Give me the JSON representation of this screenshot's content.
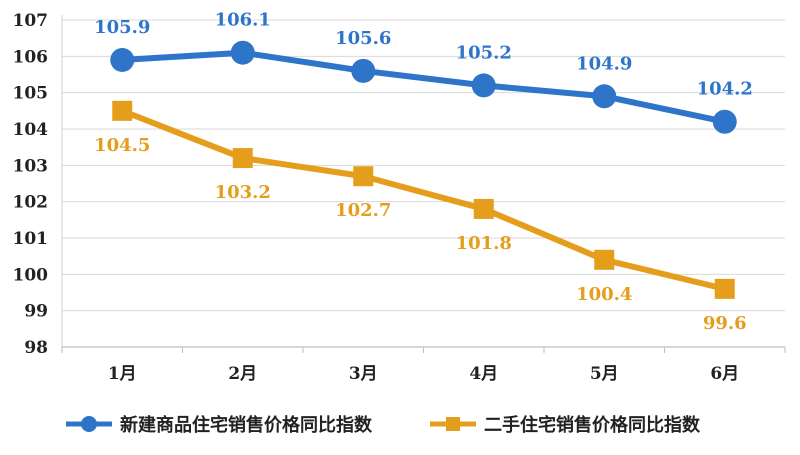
{
  "chart_data": {
    "type": "line",
    "categories": [
      "1月",
      "2月",
      "3月",
      "4月",
      "5月",
      "6月"
    ],
    "y_ticks": [
      98,
      99,
      100,
      101,
      102,
      103,
      104,
      105,
      106,
      107
    ],
    "ylim": [
      98,
      107
    ],
    "grid": true,
    "legend_position": "bottom",
    "series": [
      {
        "name": "新建商品住宅销售价格同比指数",
        "values": [
          105.9,
          106.1,
          105.6,
          105.2,
          104.9,
          104.2
        ],
        "labels": [
          "105.9",
          "106.1",
          "105.6",
          "105.2",
          "104.9",
          "104.2"
        ],
        "color": "#2E75C9",
        "marker": "circle",
        "label_position": "above"
      },
      {
        "name": "二手住宅销售价格同比指数",
        "values": [
          104.5,
          103.2,
          102.7,
          101.8,
          100.4,
          99.6
        ],
        "labels": [
          "104.5",
          "103.2",
          "102.7",
          "101.8",
          "100.4",
          "99.6"
        ],
        "color": "#E59D1C",
        "marker": "square",
        "label_position": "below"
      }
    ]
  }
}
